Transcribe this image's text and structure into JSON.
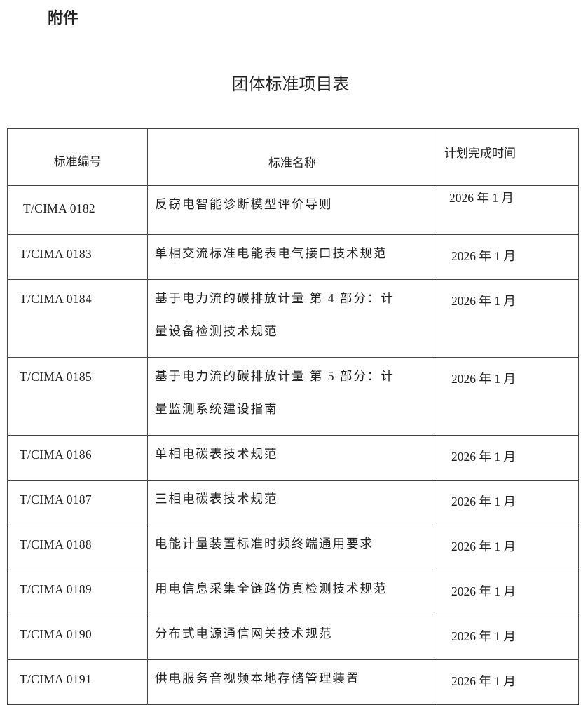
{
  "attachment_label": "附件",
  "title": "团体标准项目表",
  "table": {
    "headers": [
      "标准编号",
      "标准名称",
      "计划完成时间"
    ],
    "rows": [
      {
        "code": "T/CIMA 0182",
        "name": "反窃电智能诊断模型评价导则",
        "date": "2026 年 1 月"
      },
      {
        "code": "T/CIMA 0183",
        "name": "单相交流标准电能表电气接口技术规范",
        "date": "2026 年 1 月"
      },
      {
        "code": "T/CIMA 0184",
        "name": "基于电力流的碳排放计量 第 4 部分：计量设备检测技术规范",
        "date": "2026 年 1 月"
      },
      {
        "code": "T/CIMA 0185",
        "name": "基于电力流的碳排放计量 第 5 部分：计量监测系统建设指南",
        "date": "2026 年 1 月"
      },
      {
        "code": "T/CIMA 0186",
        "name": "单相电碳表技术规范",
        "date": "2026 年 1 月"
      },
      {
        "code": "T/CIMA 0187",
        "name": "三相电碳表技术规范",
        "date": "2026 年 1 月"
      },
      {
        "code": "T/CIMA 0188",
        "name": "电能计量装置标准时频终端通用要求",
        "date": "2026 年 1 月"
      },
      {
        "code": "T/CIMA 0189",
        "name": "用电信息采集全链路仿真检测技术规范",
        "date": "2026 年 1 月"
      },
      {
        "code": "T/CIMA 0190",
        "name": "分布式电源通信网关技术规范",
        "date": "2026 年 1 月"
      },
      {
        "code": "T/CIMA 0191",
        "name": "供电服务音视频本地存储管理装置",
        "date": "2026 年 1 月"
      }
    ]
  }
}
